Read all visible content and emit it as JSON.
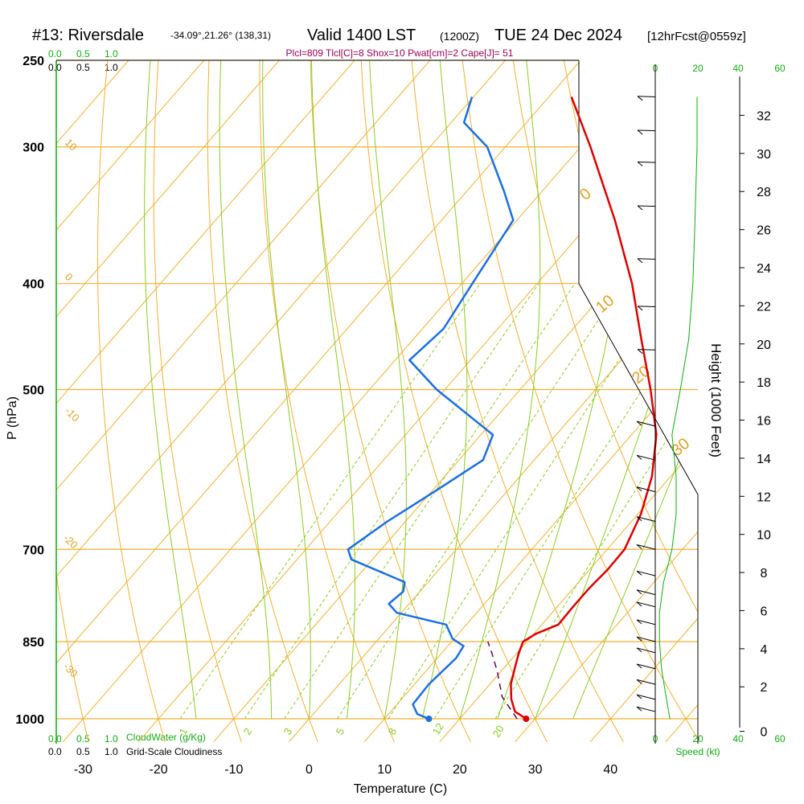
{
  "header": {
    "station": "#13: Riversdale",
    "coords": "-34.09°,21.26° (138,31)",
    "valid_main": "Valid 1400 LST",
    "valid_utc": "(1200Z)",
    "valid_date": "TUE 24 Dec 2024",
    "forecast": "[12hrFcst@0559z]",
    "indices": "Plcl=809 Tlcl[C]=8 Shox=10 Pwat[cm]=2 Cape[J]= 51"
  },
  "colors": {
    "temperature": "#dd0000",
    "dewpoint": "#1a6fe0",
    "isobar_isotherm": "#f0b030",
    "dry_adiabat": "#88cc22",
    "mixing_ratio": "#88cc22",
    "parcel": "#660055",
    "wind_green": "#11aa11"
  },
  "scales": {
    "cloud_water_top": [
      "0.0",
      "0.5",
      "1.0"
    ],
    "cloudiness_top": [
      "0.0",
      "0.5",
      "1.0"
    ],
    "cloud_water_bottom": [
      "0.0",
      "0.5",
      "1.0"
    ],
    "cloud_water_label": "CloudWater (g/Kg)",
    "cloudiness_bottom": [
      "0.0",
      "0.5",
      "1.0"
    ],
    "cloudiness_label": "Grid-Scale Cloudiness",
    "speed_top": [
      "0",
      "20",
      "40",
      "60"
    ],
    "speed_bottom": [
      "0",
      "20",
      "40",
      "60"
    ],
    "speed_label": "Speed (kt)"
  },
  "chart_data": {
    "type": "skew-t",
    "xlabel": "Temperature (C)",
    "ylabel": "P (hPa)",
    "y2label": "Height (1000 Feet)",
    "x_ticks": [
      -30,
      -20,
      -10,
      0,
      10,
      20,
      30,
      40
    ],
    "p_ticks": [
      250,
      300,
      400,
      500,
      700,
      850,
      1000
    ],
    "height_ticks_kft": [
      0,
      2,
      4,
      6,
      8,
      10,
      12,
      14,
      16,
      18,
      20,
      22,
      24,
      26,
      28,
      30,
      32
    ],
    "mixing_ratio_labels": [
      "1",
      "2",
      "3",
      "5",
      "8",
      "12",
      "20"
    ],
    "dry_adiabat_labels": [
      "0",
      "10",
      "20",
      "30"
    ],
    "isotherm_labels": [
      "10",
      "0",
      "-10",
      "-20",
      "-30"
    ],
    "temperature_profile": [
      {
        "p": 1000,
        "t": 28.8
      },
      {
        "p": 985,
        "t": 26.5
      },
      {
        "p": 960,
        "t": 24.6
      },
      {
        "p": 930,
        "t": 22.8
      },
      {
        "p": 900,
        "t": 21.5
      },
      {
        "p": 870,
        "t": 20.2
      },
      {
        "p": 850,
        "t": 19.5
      },
      {
        "p": 836,
        "t": 20.3
      },
      {
        "p": 820,
        "t": 22.2
      },
      {
        "p": 790,
        "t": 22.1
      },
      {
        "p": 760,
        "t": 22.1
      },
      {
        "p": 730,
        "t": 22.4
      },
      {
        "p": 700,
        "t": 22.3
      },
      {
        "p": 650,
        "t": 20.4
      },
      {
        "p": 600,
        "t": 17.5
      },
      {
        "p": 550,
        "t": 13.3
      },
      {
        "p": 500,
        "t": 7.3
      },
      {
        "p": 450,
        "t": 0.3
      },
      {
        "p": 400,
        "t": -7.4
      },
      {
        "p": 350,
        "t": -17.0
      },
      {
        "p": 300,
        "t": -28.7
      },
      {
        "p": 270,
        "t": -37.0
      }
    ],
    "dewpoint_profile": [
      {
        "p": 1000,
        "t": 15.9
      },
      {
        "p": 990,
        "t": 13.8
      },
      {
        "p": 970,
        "t": 12.1
      },
      {
        "p": 930,
        "t": 11.9
      },
      {
        "p": 880,
        "t": 12.5
      },
      {
        "p": 858,
        "t": 12.1
      },
      {
        "p": 845,
        "t": 9.8
      },
      {
        "p": 820,
        "t": 7.3
      },
      {
        "p": 800,
        "t": -0.6
      },
      {
        "p": 785,
        "t": -2.7
      },
      {
        "p": 765,
        "t": -2.2
      },
      {
        "p": 750,
        "t": -3.1
      },
      {
        "p": 715,
        "t": -12.8
      },
      {
        "p": 700,
        "t": -14.4
      },
      {
        "p": 660,
        "t": -12.4
      },
      {
        "p": 620,
        "t": -9.6
      },
      {
        "p": 580,
        "t": -6.8
      },
      {
        "p": 550,
        "t": -8.4
      },
      {
        "p": 500,
        "t": -21.1
      },
      {
        "p": 470,
        "t": -28.1
      },
      {
        "p": 440,
        "t": -27.2
      },
      {
        "p": 400,
        "t": -28.6
      },
      {
        "p": 350,
        "t": -30.5
      },
      {
        "p": 330,
        "t": -34.9
      },
      {
        "p": 300,
        "t": -42.4
      },
      {
        "p": 285,
        "t": -48.3
      },
      {
        "p": 270,
        "t": -50.2
      }
    ],
    "parcel_profile": [
      {
        "p": 1000,
        "t": 27.6
      },
      {
        "p": 955,
        "t": 23.1
      },
      {
        "p": 905,
        "t": 19.5
      },
      {
        "p": 870,
        "t": 16.6
      },
      {
        "p": 850,
        "t": 14.8
      }
    ],
    "surface_temperature": 28.8,
    "surface_dewpoint": 15.9,
    "wind_speed_profile_kt": [
      {
        "p": 1000,
        "s": 7
      },
      {
        "p": 950,
        "s": 5
      },
      {
        "p": 900,
        "s": 3
      },
      {
        "p": 850,
        "s": 2
      },
      {
        "p": 800,
        "s": 2
      },
      {
        "p": 750,
        "s": 4
      },
      {
        "p": 700,
        "s": 8
      },
      {
        "p": 650,
        "s": 10
      },
      {
        "p": 600,
        "s": 10
      },
      {
        "p": 550,
        "s": 8
      },
      {
        "p": 500,
        "s": 12
      },
      {
        "p": 450,
        "s": 16
      },
      {
        "p": 400,
        "s": 18
      },
      {
        "p": 350,
        "s": 19
      },
      {
        "p": 300,
        "s": 20
      },
      {
        "p": 270,
        "s": 20
      }
    ],
    "wind_barbs": [
      {
        "p": 985
      },
      {
        "p": 960
      },
      {
        "p": 930
      },
      {
        "p": 900
      },
      {
        "p": 870
      },
      {
        "p": 850
      },
      {
        "p": 820
      },
      {
        "p": 790
      },
      {
        "p": 770
      },
      {
        "p": 740
      },
      {
        "p": 700
      },
      {
        "p": 660
      },
      {
        "p": 620
      },
      {
        "p": 580
      },
      {
        "p": 540
      },
      {
        "p": 460
      },
      {
        "p": 420
      },
      {
        "p": 380
      },
      {
        "p": 340
      },
      {
        "p": 310
      },
      {
        "p": 290
      },
      {
        "p": 270
      }
    ]
  }
}
